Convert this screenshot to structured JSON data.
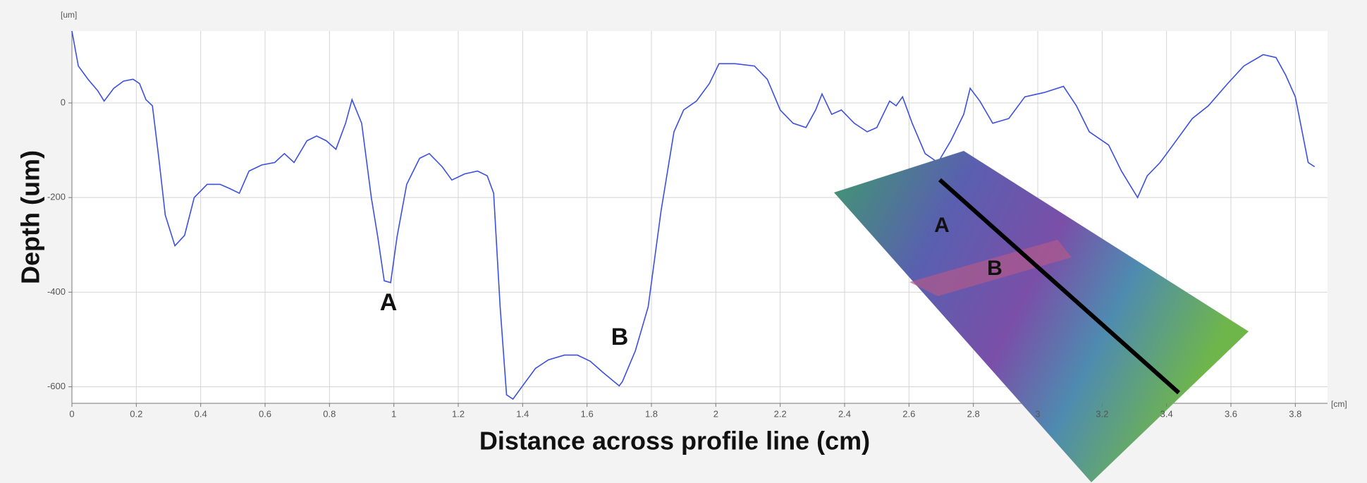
{
  "chart_data": {
    "type": "line",
    "y_label": "Depth (um)",
    "x_label": "Distance across profile line (cm)",
    "y_unit": "[um]",
    "x_unit": "[cm]",
    "annotations": [
      "A",
      "B"
    ],
    "inset_labels": [
      "A",
      "B"
    ],
    "color": "#3b4fe0",
    "grid": true,
    "xlim": [
      0,
      3.9
    ],
    "ylim": [
      -635,
      152
    ],
    "xticks": [
      0,
      0.2,
      0.4,
      0.6,
      0.8,
      1,
      1.2,
      1.4,
      1.6,
      1.8,
      2,
      2.2,
      2.4,
      2.6,
      2.8,
      3,
      3.2,
      3.4,
      3.6,
      3.8
    ],
    "yticks": [
      0,
      -200,
      -400,
      -600
    ],
    "x": [
      0,
      0.02,
      0.05,
      0.08,
      0.1,
      0.13,
      0.16,
      0.19,
      0.21,
      0.23,
      0.25,
      0.27,
      0.29,
      0.32,
      0.35,
      0.38,
      0.42,
      0.46,
      0.49,
      0.52,
      0.55,
      0.59,
      0.63,
      0.66,
      0.69,
      0.73,
      0.76,
      0.79,
      0.82,
      0.85,
      0.87,
      0.9,
      0.93,
      0.95,
      0.97,
      0.99,
      1.01,
      1.04,
      1.08,
      1.11,
      1.15,
      1.18,
      1.22,
      1.26,
      1.29,
      1.31,
      1.33,
      1.35,
      1.37,
      1.4,
      1.44,
      1.48,
      1.53,
      1.57,
      1.61,
      1.65,
      1.7,
      1.71,
      1.75,
      1.79,
      1.83,
      1.87,
      1.9,
      1.94,
      1.98,
      2.01,
      2.06,
      2.12,
      2.16,
      2.2,
      2.24,
      2.28,
      2.31,
      2.33,
      2.36,
      2.39,
      2.43,
      2.47,
      2.5,
      2.54,
      2.56,
      2.58,
      2.61,
      2.65,
      2.69,
      2.73,
      2.77,
      2.79,
      2.82,
      2.86,
      2.91,
      2.96,
      3.02,
      3.08,
      3.12,
      3.16,
      3.22,
      3.26,
      3.31,
      3.34,
      3.38,
      3.42,
      3.48,
      3.53,
      3.59,
      3.64,
      3.7,
      3.74,
      3.77,
      3.8,
      3.84,
      3.86
    ],
    "values": [
      152,
      78,
      50,
      26,
      4,
      31,
      46,
      50,
      41,
      7,
      -6,
      -117,
      -237,
      -302,
      -280,
      -200,
      -172,
      -172,
      -181,
      -191,
      -144,
      -131,
      -126,
      -107,
      -126,
      -80,
      -70,
      -80,
      -98,
      -43,
      7,
      -43,
      -200,
      -283,
      -376,
      -380,
      -283,
      -172,
      -117,
      -107,
      -135,
      -163,
      -150,
      -144,
      -154,
      -191,
      -431,
      -617,
      -626,
      -598,
      -561,
      -543,
      -533,
      -533,
      -546,
      -570,
      -598,
      -589,
      -524,
      -431,
      -228,
      -61,
      -15,
      4,
      41,
      83,
      83,
      78,
      50,
      -15,
      -43,
      -52,
      -15,
      19,
      -24,
      -15,
      -43,
      -61,
      -52,
      4,
      -6,
      13,
      -43,
      -107,
      -126,
      -80,
      -24,
      31,
      4,
      -43,
      -33,
      13,
      22,
      35,
      -6,
      -61,
      -89,
      -144,
      -200,
      -154,
      -126,
      -89,
      -33,
      -6,
      41,
      78,
      102,
      96,
      59,
      13,
      -126,
      -135
    ]
  }
}
